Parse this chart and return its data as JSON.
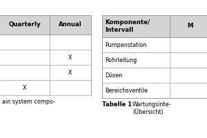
{
  "left_table": {
    "header": [
      "Quarterly",
      "Annual"
    ],
    "rows": [
      [
        "",
        ""
      ],
      [
        "",
        "X"
      ],
      [
        "",
        "X"
      ],
      [
        "X",
        ""
      ]
    ],
    "header_bg": "#d4d4d4",
    "line_color": "#999999",
    "text_color": "#000000",
    "caption": "ain system compo-"
  },
  "right_table": {
    "header": [
      "Komponente/\nIntervall",
      "M"
    ],
    "rows": [
      [
        "Pumpenstation",
        ""
      ],
      [
        "Rohrleitung",
        ""
      ],
      [
        "Düsen",
        ""
      ],
      [
        "Bereichsventile",
        ""
      ]
    ],
    "header_bg": "#d4d4d4",
    "line_color": "#999999",
    "text_color": "#000000",
    "caption_bold": "Tabelle 1",
    "caption_normal": "Wartungsinte-\n(Übersicht)"
  },
  "bg_color": "#ffffff",
  "font_size": 5.8,
  "header_font_size": 6.2
}
